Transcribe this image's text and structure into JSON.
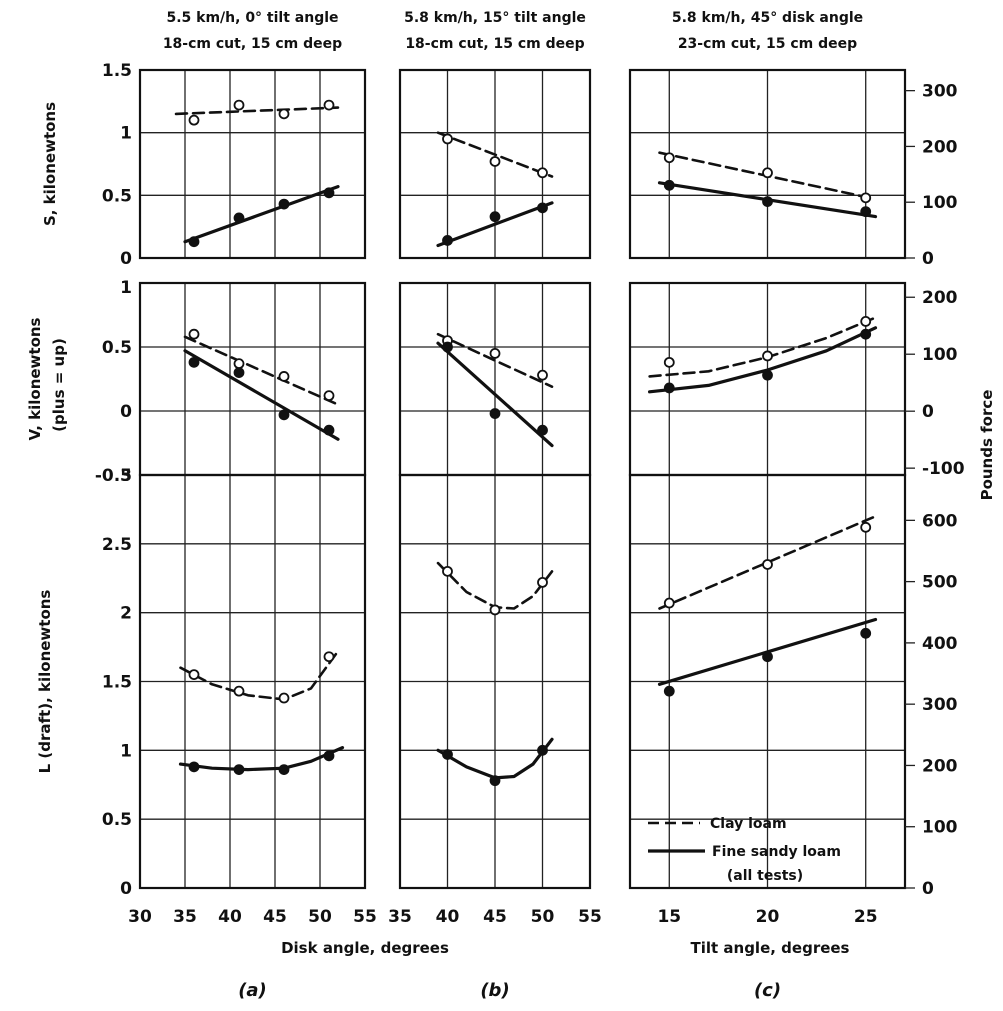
{
  "chart_data": {
    "type": "line",
    "legend": {
      "placement": "bottom-right of panel (c) lowest row",
      "entries": [
        {
          "label": "Clay loam",
          "style": "dashed"
        },
        {
          "label": "Fine sandy loam",
          "style": "solid"
        },
        {
          "label": "(all tests)",
          "style": "none"
        }
      ]
    },
    "columns": [
      {
        "id": "a",
        "label": "(a)",
        "header": [
          "5.5 km/h, 0° tilt angle",
          "18-cm cut, 15 cm deep"
        ],
        "xlim": [
          30,
          55
        ],
        "xticks": [
          30,
          35,
          40,
          45,
          50,
          55
        ]
      },
      {
        "id": "b",
        "label": "(b)",
        "header": [
          "5.8 km/h, 15° tilt angle",
          "18-cm cut, 15 cm deep"
        ],
        "xlim": [
          35,
          55
        ],
        "xticks": [
          35,
          40,
          45,
          50,
          55
        ]
      },
      {
        "id": "c",
        "label": "(c)",
        "header": [
          "5.8 km/h, 45° disk angle",
          "23-cm cut, 15 cm deep"
        ],
        "xlim": [
          13,
          27
        ],
        "xticks": [
          15,
          20,
          25
        ]
      }
    ],
    "rows": [
      {
        "id": "S",
        "ylabel": "S, kilonewtons",
        "ylim": [
          0,
          1.5
        ],
        "yticks": [
          "0",
          "0.5",
          "1",
          "1.5"
        ],
        "right_ylim": [
          0,
          337
        ],
        "right_ticks": [
          "0",
          "100",
          "200",
          "300"
        ]
      },
      {
        "id": "V",
        "ylabel": "V, kilonewtons",
        "ylabel2": "(plus = up)",
        "ylim": [
          -0.5,
          1
        ],
        "yticks": [
          "-0.5",
          "0",
          "0.5",
          "1"
        ],
        "right_ylim": [
          -112,
          225
        ],
        "right_ticks": [
          "-100",
          "0",
          "100",
          "200"
        ]
      },
      {
        "id": "L",
        "ylabel": "L (draft), kilonewtons",
        "ylim": [
          0,
          3
        ],
        "yticks": [
          "0",
          "0.5",
          "1",
          "1.5",
          "2",
          "2.5",
          "3"
        ],
        "right_ylim": [
          0,
          674
        ],
        "right_ticks": [
          "0",
          "100",
          "200",
          "300",
          "400",
          "500",
          "600"
        ]
      }
    ],
    "xlabels": {
      "ab": "Disk angle, degrees",
      "c": "Tilt angle, degrees"
    },
    "right_ylabel": "Pounds force",
    "panels": [
      {
        "row": "S",
        "col": "a",
        "series": [
          {
            "name": "Clay loam",
            "style": "dashed",
            "marker": "open",
            "points": [
              [
                36,
                1.1
              ],
              [
                41,
                1.22
              ],
              [
                46,
                1.15
              ],
              [
                51,
                1.22
              ]
            ],
            "fit": [
              [
                34,
                1.15
              ],
              [
                52,
                1.2
              ]
            ]
          },
          {
            "name": "Fine sandy loam",
            "style": "solid",
            "marker": "filled",
            "points": [
              [
                36,
                0.13
              ],
              [
                41,
                0.32
              ],
              [
                46,
                0.43
              ],
              [
                51,
                0.52
              ]
            ],
            "fit": [
              [
                35,
                0.13
              ],
              [
                52,
                0.57
              ]
            ]
          }
        ]
      },
      {
        "row": "S",
        "col": "b",
        "series": [
          {
            "name": "Clay loam",
            "style": "dashed",
            "marker": "open",
            "points": [
              [
                40,
                0.95
              ],
              [
                45,
                0.77
              ],
              [
                50,
                0.68
              ]
            ],
            "fit": [
              [
                39,
                1.0
              ],
              [
                51,
                0.65
              ]
            ]
          },
          {
            "name": "Fine sandy loam",
            "style": "solid",
            "marker": "filled",
            "points": [
              [
                40,
                0.14
              ],
              [
                45,
                0.33
              ],
              [
                50,
                0.4
              ]
            ],
            "fit": [
              [
                39,
                0.1
              ],
              [
                51,
                0.44
              ]
            ]
          }
        ]
      },
      {
        "row": "S",
        "col": "c",
        "series": [
          {
            "name": "Clay loam",
            "style": "dashed",
            "marker": "open",
            "points": [
              [
                15,
                0.8
              ],
              [
                20,
                0.68
              ],
              [
                25,
                0.48
              ]
            ],
            "fit": [
              [
                14.5,
                0.84
              ],
              [
                25.5,
                0.47
              ]
            ]
          },
          {
            "name": "Fine sandy loam",
            "style": "solid",
            "marker": "filled",
            "points": [
              [
                15,
                0.58
              ],
              [
                20,
                0.45
              ],
              [
                25,
                0.37
              ]
            ],
            "fit": [
              [
                14.5,
                0.6
              ],
              [
                25.5,
                0.33
              ]
            ]
          }
        ]
      },
      {
        "row": "V",
        "col": "a",
        "series": [
          {
            "name": "Clay loam",
            "style": "dashed",
            "marker": "open",
            "points": [
              [
                36,
                0.6
              ],
              [
                41,
                0.37
              ],
              [
                46,
                0.27
              ],
              [
                51,
                0.12
              ]
            ],
            "fit": [
              [
                35,
                0.58
              ],
              [
                52,
                0.05
              ]
            ]
          },
          {
            "name": "Fine sandy loam",
            "style": "solid",
            "marker": "filled",
            "points": [
              [
                36,
                0.38
              ],
              [
                41,
                0.3
              ],
              [
                46,
                -0.03
              ],
              [
                51,
                -0.15
              ]
            ],
            "fit": [
              [
                35,
                0.47
              ],
              [
                52,
                -0.22
              ]
            ]
          }
        ]
      },
      {
        "row": "V",
        "col": "b",
        "series": [
          {
            "name": "Clay loam",
            "style": "dashed",
            "marker": "open",
            "points": [
              [
                40,
                0.55
              ],
              [
                45,
                0.45
              ],
              [
                50,
                0.28
              ]
            ],
            "fit": [
              [
                39,
                0.6
              ],
              [
                51,
                0.19
              ]
            ]
          },
          {
            "name": "Fine sandy loam",
            "style": "solid",
            "marker": "filled",
            "points": [
              [
                40,
                0.5
              ],
              [
                45,
                -0.02
              ],
              [
                50,
                -0.15
              ]
            ],
            "fit": [
              [
                39,
                0.53
              ],
              [
                51,
                -0.27
              ]
            ]
          }
        ]
      },
      {
        "row": "V",
        "col": "c",
        "series": [
          {
            "name": "Clay loam",
            "style": "dashed",
            "marker": "open",
            "points": [
              [
                15,
                0.38
              ],
              [
                20,
                0.43
              ],
              [
                25,
                0.7
              ]
            ],
            "fit": [
              [
                14,
                0.27
              ],
              [
                17,
                0.31
              ],
              [
                20,
                0.42
              ],
              [
                23,
                0.57
              ],
              [
                25.5,
                0.73
              ]
            ]
          },
          {
            "name": "Fine sandy loam",
            "style": "solid",
            "marker": "filled",
            "points": [
              [
                15,
                0.18
              ],
              [
                20,
                0.28
              ],
              [
                25,
                0.6
              ]
            ],
            "fit": [
              [
                14,
                0.15
              ],
              [
                17,
                0.2
              ],
              [
                20,
                0.32
              ],
              [
                23,
                0.47
              ],
              [
                25.5,
                0.65
              ]
            ]
          }
        ]
      },
      {
        "row": "L",
        "col": "a",
        "series": [
          {
            "name": "Clay loam",
            "style": "dashed",
            "marker": "open",
            "points": [
              [
                36,
                1.55
              ],
              [
                41,
                1.43
              ],
              [
                46,
                1.38
              ],
              [
                51,
                1.68
              ]
            ],
            "fit": [
              [
                34.5,
                1.6
              ],
              [
                38,
                1.48
              ],
              [
                42,
                1.4
              ],
              [
                46,
                1.37
              ],
              [
                49,
                1.45
              ],
              [
                52,
                1.72
              ]
            ]
          },
          {
            "name": "Fine sandy loam",
            "style": "solid",
            "marker": "filled",
            "points": [
              [
                36,
                0.88
              ],
              [
                41,
                0.86
              ],
              [
                46,
                0.86
              ],
              [
                51,
                0.96
              ]
            ],
            "fit": [
              [
                34.5,
                0.9
              ],
              [
                38,
                0.87
              ],
              [
                42,
                0.86
              ],
              [
                46,
                0.87
              ],
              [
                49,
                0.92
              ],
              [
                52.5,
                1.02
              ]
            ]
          }
        ]
      },
      {
        "row": "L",
        "col": "b",
        "series": [
          {
            "name": "Clay loam",
            "style": "dashed",
            "marker": "open",
            "points": [
              [
                40,
                2.3
              ],
              [
                45,
                2.02
              ],
              [
                50,
                2.22
              ]
            ],
            "fit": [
              [
                39,
                2.36
              ],
              [
                42,
                2.15
              ],
              [
                45,
                2.04
              ],
              [
                47,
                2.03
              ],
              [
                49,
                2.12
              ],
              [
                51,
                2.3
              ]
            ]
          },
          {
            "name": "Fine sandy loam",
            "style": "solid",
            "marker": "filled",
            "points": [
              [
                40,
                0.97
              ],
              [
                45,
                0.78
              ],
              [
                50,
                1.0
              ]
            ],
            "fit": [
              [
                39,
                1.0
              ],
              [
                42,
                0.88
              ],
              [
                45,
                0.8
              ],
              [
                47,
                0.81
              ],
              [
                49,
                0.9
              ],
              [
                51,
                1.08
              ]
            ]
          }
        ]
      },
      {
        "row": "L",
        "col": "c",
        "series": [
          {
            "name": "Clay loam",
            "style": "dashed",
            "marker": "open",
            "points": [
              [
                15,
                2.07
              ],
              [
                20,
                2.35
              ],
              [
                25,
                2.62
              ]
            ],
            "fit": [
              [
                14.5,
                2.03
              ],
              [
                25.5,
                2.7
              ]
            ]
          },
          {
            "name": "Fine sandy loam",
            "style": "solid",
            "marker": "filled",
            "points": [
              [
                15,
                1.43
              ],
              [
                20,
                1.68
              ],
              [
                25,
                1.85
              ]
            ],
            "fit": [
              [
                14.5,
                1.48
              ],
              [
                25.5,
                1.95
              ]
            ]
          }
        ]
      }
    ]
  }
}
